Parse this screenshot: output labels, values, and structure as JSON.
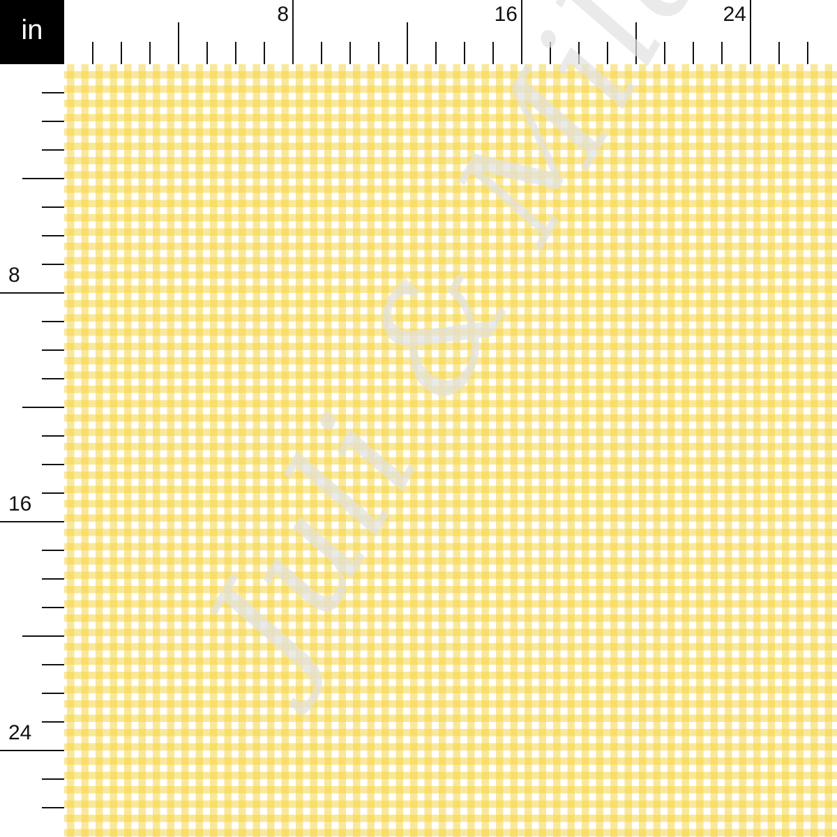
{
  "unit_label": "in",
  "ruler": {
    "major_labels": [
      "8",
      "16",
      "24"
    ],
    "major_every_inches": 8,
    "medium_every_inches": 4,
    "inches_shown": 27
  },
  "fabric": {
    "pattern": "gingham",
    "colors": {
      "primary": "#f5d646",
      "light": "#f9e9a0",
      "background": "#ffffff"
    }
  },
  "watermark": "Juli & Mila"
}
